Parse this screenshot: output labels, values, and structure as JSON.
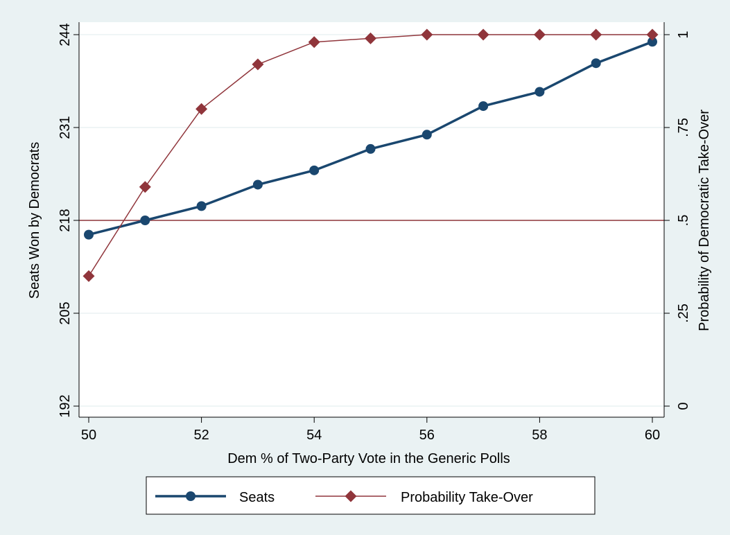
{
  "colors": {
    "background": "#eaf2f3",
    "plot_background": "#ffffff",
    "seats": "#1a476f",
    "probability": "#90353b",
    "grid": "#eaf2f3"
  },
  "chart_data": {
    "type": "line",
    "xlabel": "Dem % of Two-Party Vote in the Generic Polls",
    "ylabel_left": "Seats Won by Democrats",
    "ylabel_right": "Probability of Democratic Take-Over",
    "x": [
      50,
      51,
      52,
      53,
      54,
      55,
      56,
      57,
      58,
      59,
      60
    ],
    "xlim": [
      50,
      60
    ],
    "xticks": [
      "50",
      "52",
      "54",
      "56",
      "58",
      "60"
    ],
    "ylim_left": [
      192,
      244
    ],
    "yticks_left": [
      "192",
      "205",
      "218",
      "231",
      "244"
    ],
    "ylim_right": [
      0,
      1
    ],
    "yticks_right": [
      "0",
      ".25",
      ".5",
      ".75",
      "1"
    ],
    "reference_line": {
      "axis": "right",
      "value": 0.5
    },
    "grid": true,
    "legend_position": "bottom",
    "series": [
      {
        "name": "Seats",
        "axis": "left",
        "marker": "circle",
        "values": [
          216,
          218,
          220,
          223,
          225,
          228,
          230,
          234,
          236,
          240,
          243
        ]
      },
      {
        "name": "Probability Take-Over",
        "axis": "right",
        "marker": "diamond",
        "values": [
          0.35,
          0.59,
          0.8,
          0.92,
          0.98,
          0.99,
          1.0,
          1.0,
          1.0,
          1.0,
          1.0
        ]
      }
    ]
  }
}
